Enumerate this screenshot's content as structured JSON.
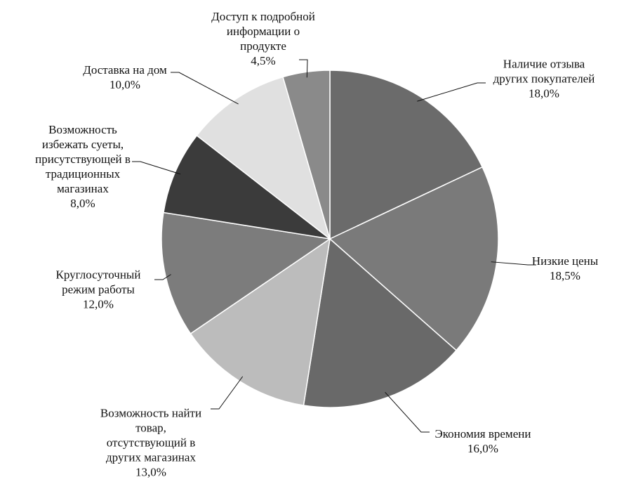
{
  "chart_data": {
    "type": "pie",
    "categories": [
      "Наличие отзыва\nдругих покупателей",
      "Низкие цены",
      "Экономия времени",
      "Возможность найти\nтовар,\nотсутствующий в\nдругих магазинах",
      "Круглосуточный\nрежим работы",
      "Возможность\nизбежать суеты,\nприсутствующей в\nтрадиционных\nмагазинах",
      "Доставка на дом",
      "Доступ к подробной\nинформации о\nпродукте"
    ],
    "values": [
      18.0,
      18.5,
      16.0,
      13.0,
      12.0,
      8.0,
      10.0,
      4.5
    ],
    "value_labels": [
      "18,0%",
      "18,5%",
      "16,0%",
      "13,0%",
      "12,0%",
      "8,0%",
      "10,0%",
      "4,5%"
    ],
    "colors": [
      "#6b6b6b",
      "#7a7a7a",
      "#696969",
      "#bcbcbc",
      "#7c7c7c",
      "#3b3b3b",
      "#e0e0e0",
      "#8a8a8a"
    ]
  }
}
